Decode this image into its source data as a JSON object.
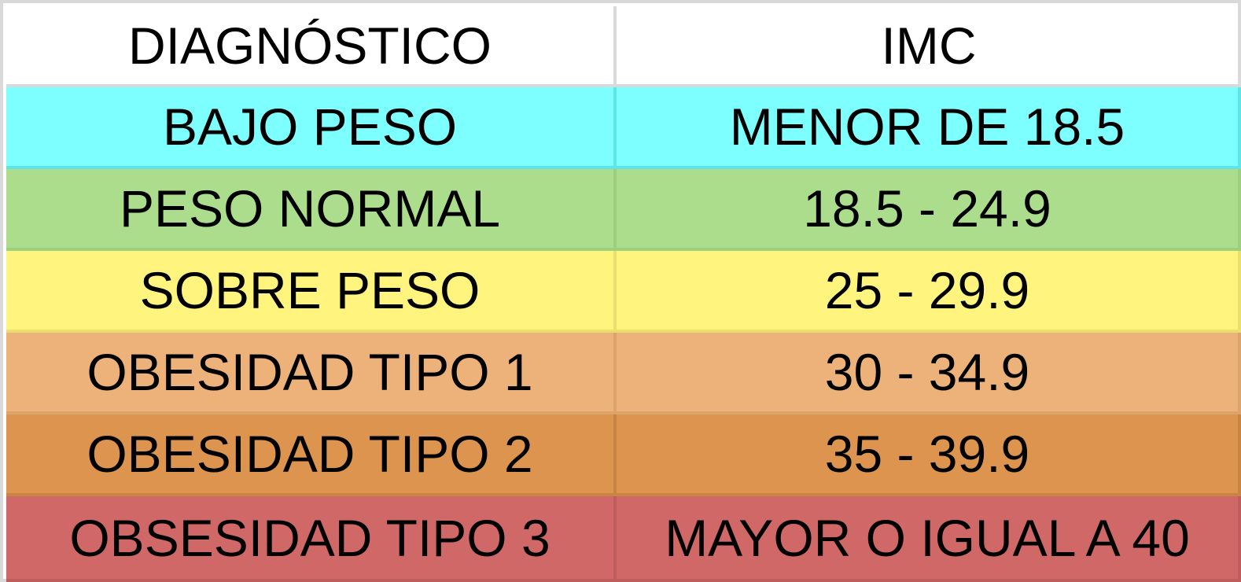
{
  "table": {
    "headers": {
      "diagnostico": "DIAGNÓSTICO",
      "imc": "IMC"
    },
    "rows": [
      {
        "diagnostico": "BAJO PESO",
        "imc": "MENOR DE 18.5",
        "color": "#7dffff",
        "border": "#5ee6e6"
      },
      {
        "diagnostico": "PESO NORMAL",
        "imc": "18.5 - 24.9",
        "color": "#abdd8d",
        "border": "#9ccf7e"
      },
      {
        "diagnostico": "SOBRE PESO",
        "imc": "25 - 29.9",
        "color": "#fff47d",
        "border": "#eadf6e"
      },
      {
        "diagnostico": "OBESIDAD TIPO 1",
        "imc": "30 - 34.9",
        "color": "#ecb27a",
        "border": "#dca36c"
      },
      {
        "diagnostico": "OBESIDAD TIPO 2",
        "imc": "35 - 39.9",
        "color": "#dc944e",
        "border": "#c98443"
      },
      {
        "diagnostico": "OBSESIDAD TIPO 3",
        "imc": "MAYOR O IGUAL A 40",
        "color": "#d06868",
        "border": "#bf5c5c"
      }
    ]
  }
}
